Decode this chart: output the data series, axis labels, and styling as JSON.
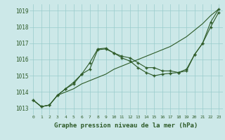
{
  "title": "Graphe pression niveau de la mer (hPa)",
  "bg_color": "#cce8e8",
  "grid_color": "#99cccc",
  "line_color": "#2d5a27",
  "xlim": [
    -0.5,
    23.5
  ],
  "ylim": [
    1012.6,
    1019.4
  ],
  "xticks": [
    0,
    1,
    2,
    3,
    4,
    5,
    6,
    7,
    8,
    9,
    10,
    11,
    12,
    13,
    14,
    15,
    16,
    17,
    18,
    19,
    20,
    21,
    22,
    23
  ],
  "yticks": [
    1013,
    1014,
    1015,
    1016,
    1017,
    1018,
    1019
  ],
  "series": [
    {
      "x": [
        0,
        1,
        2,
        3,
        4,
        5,
        6,
        7,
        8,
        9,
        10,
        11,
        12,
        13,
        14,
        15,
        16,
        17,
        18,
        19,
        20,
        21,
        22,
        23
      ],
      "y": [
        1013.5,
        1013.1,
        1013.2,
        1013.8,
        1014.0,
        1014.2,
        1014.5,
        1014.7,
        1014.9,
        1015.1,
        1015.4,
        1015.6,
        1015.8,
        1016.0,
        1016.2,
        1016.4,
        1016.6,
        1016.8,
        1017.1,
        1017.4,
        1017.8,
        1018.2,
        1018.7,
        1019.1
      ],
      "marker": null
    },
    {
      "x": [
        0,
        1,
        2,
        3,
        4,
        5,
        6,
        7,
        8,
        9,
        10,
        11,
        12,
        13,
        14,
        15,
        16,
        17,
        18,
        19,
        20,
        21,
        22,
        23
      ],
      "y": [
        1013.5,
        1013.1,
        1013.2,
        1013.8,
        1014.2,
        1014.6,
        1015.1,
        1015.4,
        1016.6,
        1016.65,
        1016.4,
        1016.2,
        1016.1,
        1015.8,
        1015.5,
        1015.5,
        1015.3,
        1015.3,
        1015.2,
        1015.3,
        1016.3,
        1017.0,
        1018.3,
        1019.1
      ],
      "marker": "+"
    },
    {
      "x": [
        0,
        1,
        2,
        3,
        4,
        5,
        6,
        7,
        8,
        9,
        10,
        11,
        12,
        13,
        14,
        15,
        16,
        17,
        18,
        19,
        20,
        21,
        22,
        23
      ],
      "y": [
        1013.5,
        1013.1,
        1013.2,
        1013.8,
        1014.2,
        1014.5,
        1015.1,
        1015.8,
        1016.65,
        1016.7,
        1016.4,
        1016.1,
        1015.9,
        1015.5,
        1015.2,
        1015.0,
        1015.1,
        1015.15,
        1015.2,
        1015.4,
        1016.3,
        1017.0,
        1018.0,
        1018.9
      ],
      "marker": "+"
    }
  ]
}
